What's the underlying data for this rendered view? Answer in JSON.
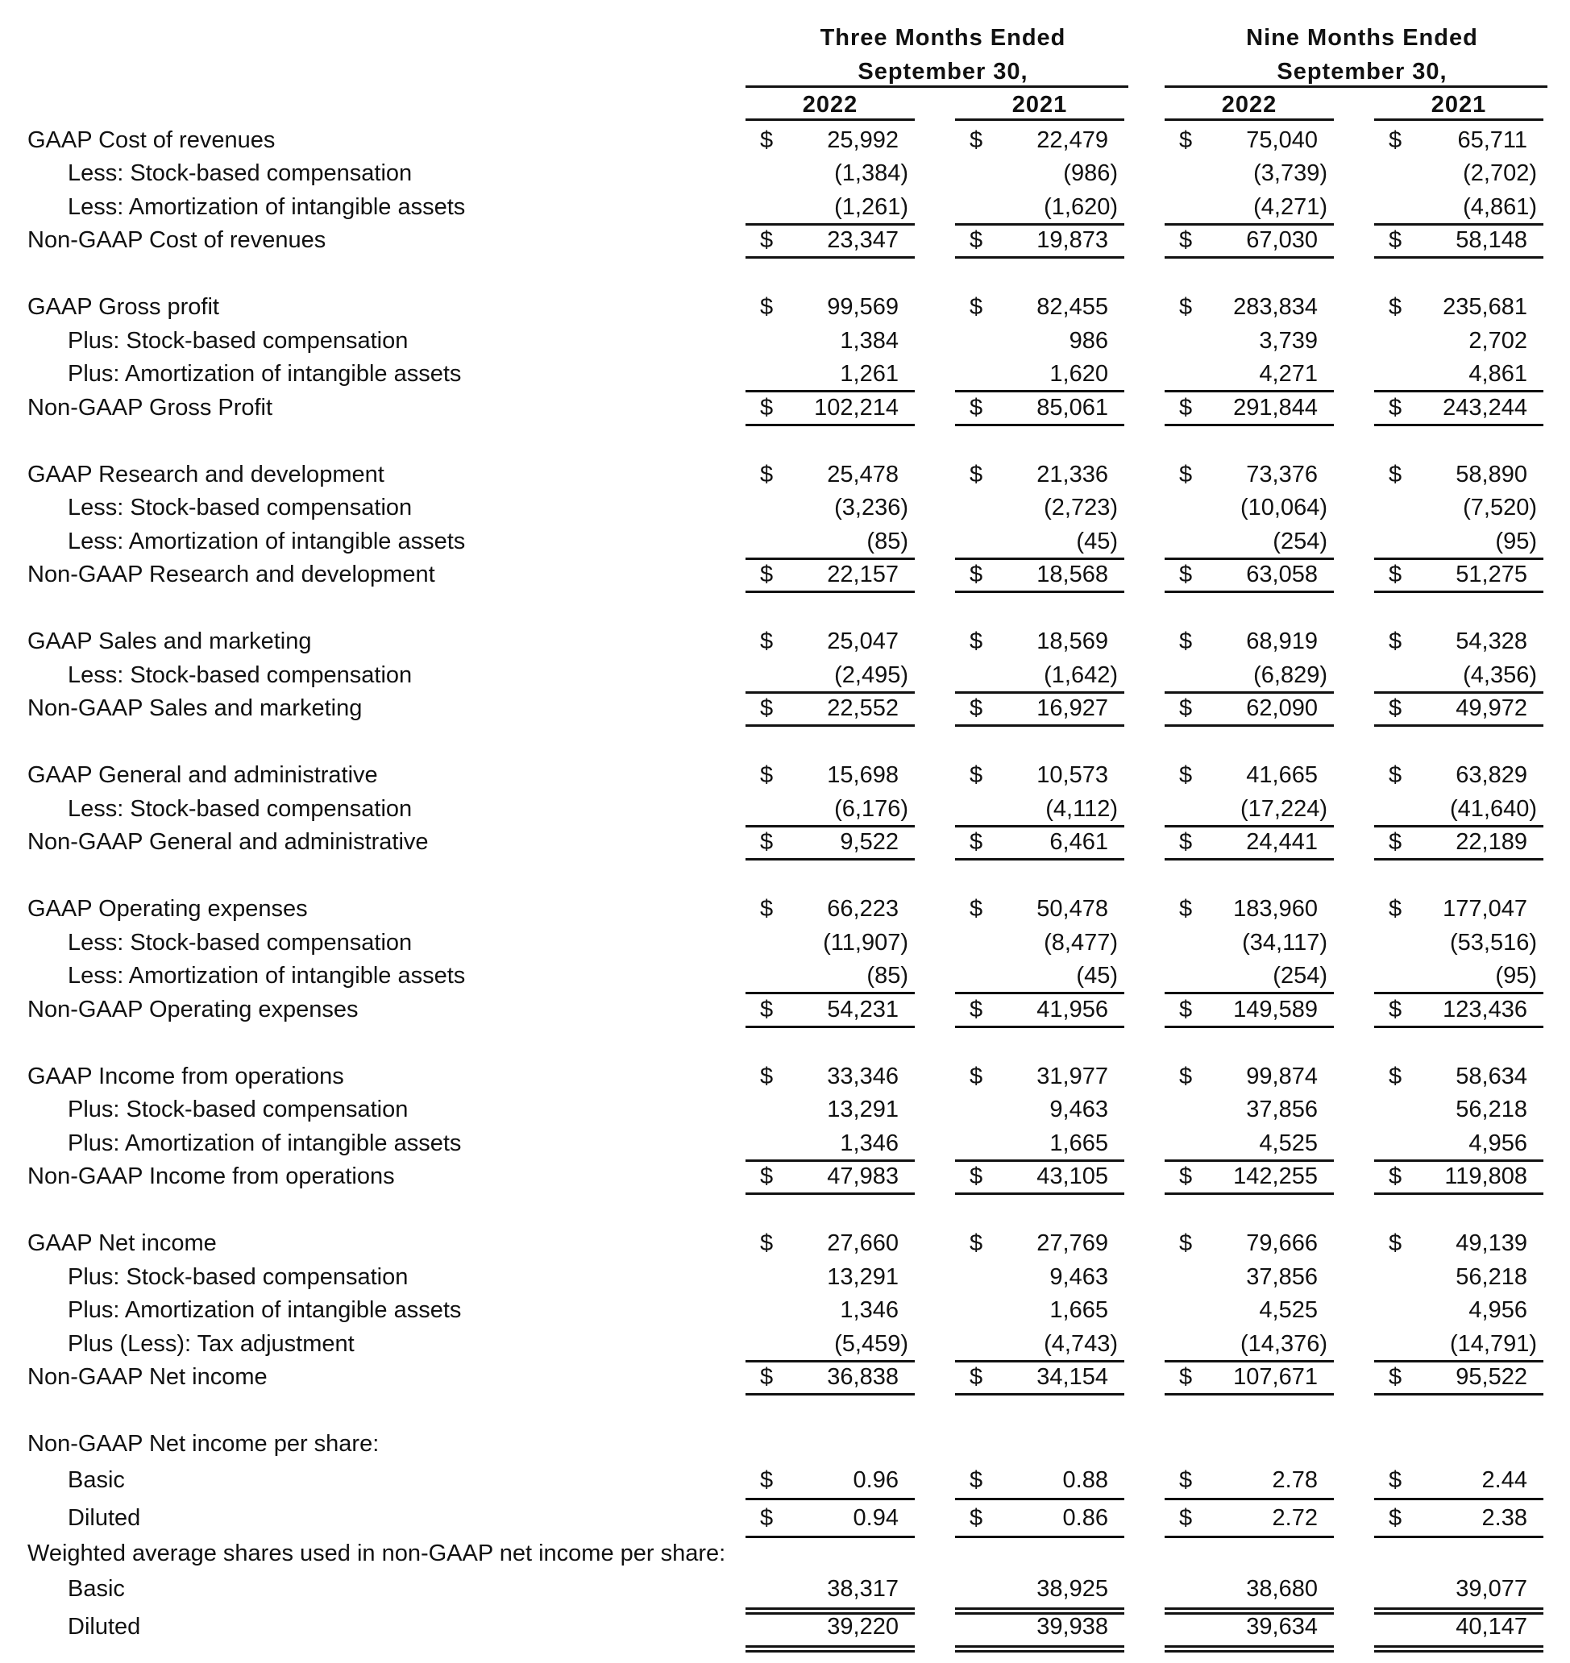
{
  "header": {
    "three_months_line1": "Three Months Ended",
    "three_months_line2": "September 30,",
    "nine_months_line1": "Nine Months Ended",
    "nine_months_line2": "September 30,",
    "years": [
      "2022",
      "2021",
      "2022",
      "2021"
    ]
  },
  "rows": [
    {
      "label": "GAAP Cost of revenues",
      "indent": 0,
      "dollar": true,
      "values": [
        "25,992",
        "22,479",
        "75,040",
        "65,711"
      ]
    },
    {
      "label": "Less: Stock-based compensation",
      "indent": 1,
      "dollar": false,
      "values": [
        "(1,384)",
        "(986)",
        "(3,739)",
        "(2,702)"
      ]
    },
    {
      "label": "Less: Amortization of intangible assets",
      "indent": 1,
      "dollar": false,
      "values": [
        "(1,261)",
        "(1,620)",
        "(4,271)",
        "(4,861)"
      ],
      "under": "single"
    },
    {
      "label": "Non-GAAP Cost of revenues",
      "indent": 0,
      "dollar": true,
      "values": [
        "23,347",
        "19,873",
        "67,030",
        "58,148"
      ],
      "under": "single"
    },
    {
      "spacer": true
    },
    {
      "label": "GAAP Gross profit",
      "indent": 0,
      "dollar": true,
      "values": [
        "99,569",
        "82,455",
        "283,834",
        "235,681"
      ]
    },
    {
      "label": "Plus: Stock-based compensation",
      "indent": 1,
      "dollar": false,
      "values": [
        "1,384",
        "986",
        "3,739",
        "2,702"
      ]
    },
    {
      "label": "Plus: Amortization of intangible assets",
      "indent": 1,
      "dollar": false,
      "values": [
        "1,261",
        "1,620",
        "4,271",
        "4,861"
      ],
      "under": "single"
    },
    {
      "label": "Non-GAAP Gross Profit",
      "indent": 0,
      "dollar": true,
      "values": [
        "102,214",
        "85,061",
        "291,844",
        "243,244"
      ],
      "under": "single"
    },
    {
      "spacer": true
    },
    {
      "label": "GAAP Research and development",
      "indent": 0,
      "dollar": true,
      "values": [
        "25,478",
        "21,336",
        "73,376",
        "58,890"
      ]
    },
    {
      "label": "Less: Stock-based compensation",
      "indent": 1,
      "dollar": false,
      "values": [
        "(3,236)",
        "(2,723)",
        "(10,064)",
        "(7,520)"
      ]
    },
    {
      "label": "Less: Amortization of intangible assets",
      "indent": 1,
      "dollar": false,
      "values": [
        "(85)",
        "(45)",
        "(254)",
        "(95)"
      ],
      "under": "single"
    },
    {
      "label": "Non-GAAP Research and development",
      "indent": 0,
      "dollar": true,
      "values": [
        "22,157",
        "18,568",
        "63,058",
        "51,275"
      ],
      "under": "single"
    },
    {
      "spacer": true
    },
    {
      "label": "GAAP Sales and marketing",
      "indent": 0,
      "dollar": true,
      "values": [
        "25,047",
        "18,569",
        "68,919",
        "54,328"
      ]
    },
    {
      "label": "Less: Stock-based compensation",
      "indent": 1,
      "dollar": false,
      "values": [
        "(2,495)",
        "(1,642)",
        "(6,829)",
        "(4,356)"
      ],
      "under": "single"
    },
    {
      "label": "Non-GAAP Sales and marketing",
      "indent": 0,
      "dollar": true,
      "values": [
        "22,552",
        "16,927",
        "62,090",
        "49,972"
      ],
      "under": "single"
    },
    {
      "spacer": true
    },
    {
      "label": "GAAP General and administrative",
      "indent": 0,
      "dollar": true,
      "values": [
        "15,698",
        "10,573",
        "41,665",
        "63,829"
      ]
    },
    {
      "label": "Less: Stock-based compensation",
      "indent": 1,
      "dollar": false,
      "values": [
        "(6,176)",
        "(4,112)",
        "(17,224)",
        "(41,640)"
      ],
      "under": "single"
    },
    {
      "label": "Non-GAAP General and administrative",
      "indent": 0,
      "dollar": true,
      "values": [
        "9,522",
        "6,461",
        "24,441",
        "22,189"
      ],
      "under": "single"
    },
    {
      "spacer": true
    },
    {
      "label": "GAAP Operating expenses",
      "indent": 0,
      "dollar": true,
      "values": [
        "66,223",
        "50,478",
        "183,960",
        "177,047"
      ]
    },
    {
      "label": "Less: Stock-based compensation",
      "indent": 1,
      "dollar": false,
      "values": [
        "(11,907)",
        "(8,477)",
        "(34,117)",
        "(53,516)"
      ]
    },
    {
      "label": "Less: Amortization of intangible assets",
      "indent": 1,
      "dollar": false,
      "values": [
        "(85)",
        "(45)",
        "(254)",
        "(95)"
      ],
      "under": "single"
    },
    {
      "label": "Non-GAAP Operating expenses",
      "indent": 0,
      "dollar": true,
      "values": [
        "54,231",
        "41,956",
        "149,589",
        "123,436"
      ],
      "under": "single"
    },
    {
      "spacer": true
    },
    {
      "label": "GAAP Income from operations",
      "indent": 0,
      "dollar": true,
      "values": [
        "33,346",
        "31,977",
        "99,874",
        "58,634"
      ]
    },
    {
      "label": "Plus: Stock-based compensation",
      "indent": 1,
      "dollar": false,
      "values": [
        "13,291",
        "9,463",
        "37,856",
        "56,218"
      ]
    },
    {
      "label": "Plus: Amortization of intangible assets",
      "indent": 1,
      "dollar": false,
      "values": [
        "1,346",
        "1,665",
        "4,525",
        "4,956"
      ],
      "under": "single"
    },
    {
      "label": "Non-GAAP Income from operations",
      "indent": 0,
      "dollar": true,
      "values": [
        "47,983",
        "43,105",
        "142,255",
        "119,808"
      ],
      "under": "single"
    },
    {
      "spacer": true
    },
    {
      "label": "GAAP Net income",
      "indent": 0,
      "dollar": true,
      "values": [
        "27,660",
        "27,769",
        "79,666",
        "49,139"
      ]
    },
    {
      "label": "Plus: Stock-based compensation",
      "indent": 1,
      "dollar": false,
      "values": [
        "13,291",
        "9,463",
        "37,856",
        "56,218"
      ]
    },
    {
      "label": "Plus: Amortization of intangible assets",
      "indent": 1,
      "dollar": false,
      "values": [
        "1,346",
        "1,665",
        "4,525",
        "4,956"
      ]
    },
    {
      "label": "Plus (Less): Tax adjustment",
      "indent": 1,
      "dollar": false,
      "values": [
        "(5,459)",
        "(4,743)",
        "(14,376)",
        "(14,791)"
      ],
      "under": "single"
    },
    {
      "label": "Non-GAAP Net income",
      "indent": 0,
      "dollar": true,
      "values": [
        "36,838",
        "34,154",
        "107,671",
        "95,522"
      ],
      "under": "single"
    },
    {
      "spacer": true
    },
    {
      "label": "Non-GAAP Net income per share:",
      "indent": 0,
      "dollar": false,
      "values": [
        "",
        "",
        "",
        ""
      ]
    },
    {
      "label": "Basic",
      "indent": 1,
      "dollar": true,
      "values": [
        "0.96",
        "0.88",
        "2.78",
        "2.44"
      ],
      "under": "single",
      "tall": true
    },
    {
      "label": "Diluted",
      "indent": 1,
      "dollar": true,
      "values": [
        "0.94",
        "0.86",
        "2.72",
        "2.38"
      ],
      "under": "single",
      "tall": true
    },
    {
      "label": "Weighted average shares used in non-GAAP net income per share:",
      "indent": 0,
      "dollar": false,
      "values": [
        "",
        "",
        "",
        ""
      ]
    },
    {
      "label": "Basic",
      "indent": 1,
      "dollar": false,
      "values": [
        "38,317",
        "38,925",
        "38,680",
        "39,077"
      ],
      "under": "double",
      "tall": true
    },
    {
      "label": "Diluted",
      "indent": 1,
      "dollar": false,
      "values": [
        "39,220",
        "39,938",
        "39,634",
        "40,147"
      ],
      "under": "double",
      "tall": true
    }
  ]
}
